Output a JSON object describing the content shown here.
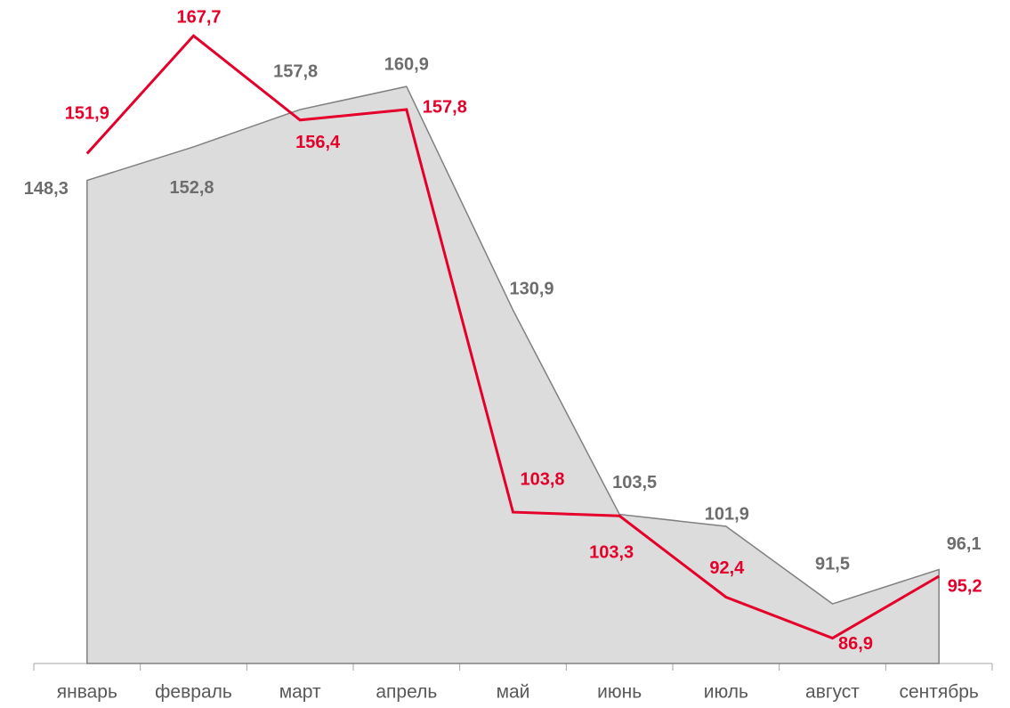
{
  "chart_data": {
    "type": "area",
    "categories": [
      "январь",
      "февраль",
      "март",
      "апрель",
      "май",
      "июнь",
      "июль",
      "август",
      "сентябрь"
    ],
    "series": [
      {
        "type": "area",
        "color": "#dcdcdc",
        "line_color": "#808080",
        "label_color": "#6d6d6d",
        "values": [
          148.3,
          152.8,
          157.8,
          160.9,
          130.9,
          103.5,
          101.9,
          91.5,
          96.1
        ],
        "value_labels": [
          "148,3",
          "152,8",
          "157,8",
          "160,9",
          "130,9",
          "103,5",
          "101,9",
          "91,5",
          "96,1"
        ]
      },
      {
        "type": "line",
        "color": "#e4002b",
        "label_color": "#e4002b",
        "values": [
          151.9,
          167.7,
          156.4,
          157.8,
          103.8,
          103.3,
          92.4,
          86.9,
          95.2
        ],
        "value_labels": [
          "151,9",
          "167,7",
          "156,4",
          "157,8",
          "103,8",
          "103,3",
          "92,4",
          "86,9",
          "95,2"
        ]
      }
    ],
    "ylim": [
      83.5,
      172.5
    ]
  }
}
